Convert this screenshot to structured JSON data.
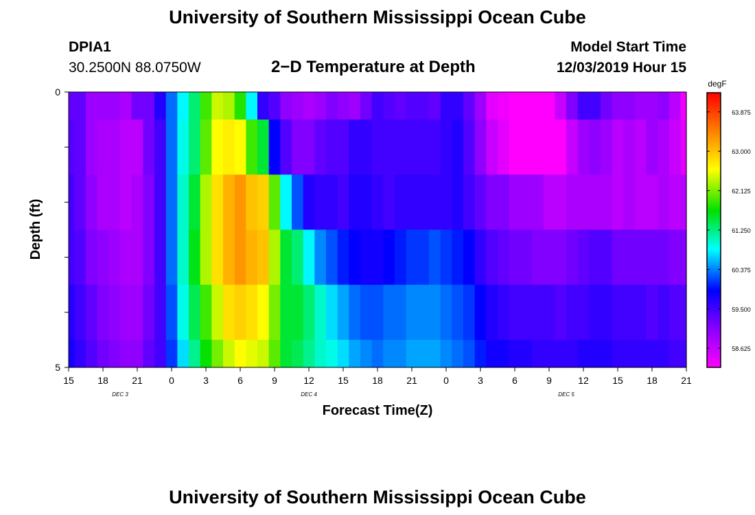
{
  "header": {
    "title": "University of Southern Mississippi Ocean Cube",
    "station_id": "DPIA1",
    "station_coords": "30.2500N 88.0750W",
    "model_label": "Model Start Time",
    "model_time": "12/03/2019 Hour 15"
  },
  "footer": {
    "title": "University of Southern Mississippi Ocean Cube"
  },
  "chart_data": {
    "type": "heatmap",
    "title": "2−D Temperature at Depth",
    "xlabel": "Forecast Time(Z)",
    "ylabel": "Depth (ft)",
    "x_ticks": [
      "15",
      "18",
      "21",
      "0",
      "3",
      "6",
      "9",
      "12",
      "15",
      "18",
      "21",
      "0",
      "3",
      "6",
      "9",
      "12",
      "15",
      "18",
      "21"
    ],
    "x_tick_hours": [
      0,
      3,
      6,
      9,
      12,
      15,
      18,
      21,
      24,
      27,
      30,
      33,
      36,
      39,
      42,
      45,
      48,
      51,
      54
    ],
    "day_labels": [
      {
        "label": "DEC 3",
        "hour": 4.5
      },
      {
        "label": "DEC 4",
        "hour": 21
      },
      {
        "label": "DEC 5",
        "hour": 43.5
      }
    ],
    "y_ticks": [
      "0",
      "5"
    ],
    "y_range": [
      0,
      5
    ],
    "depth_rows": [
      0,
      1,
      2,
      3,
      4,
      5
    ],
    "hours": [
      0,
      1,
      2,
      3,
      4,
      5,
      6,
      7,
      8,
      9,
      10,
      11,
      12,
      13,
      14,
      15,
      16,
      17,
      18,
      19,
      20,
      21,
      22,
      23,
      24,
      25,
      26,
      27,
      28,
      29,
      30,
      31,
      32,
      33,
      34,
      35,
      36,
      37,
      38,
      39,
      40,
      41,
      42,
      43,
      44,
      45,
      46,
      47,
      48,
      49,
      50,
      51,
      52,
      53,
      54
    ],
    "temps_degF": [
      [
        59.3,
        59.3,
        58.9,
        58.9,
        58.9,
        58.8,
        59.2,
        59.2,
        59.7,
        60.3,
        60.8,
        61.3,
        61.9,
        62.4,
        62.3,
        61.8,
        60.8,
        59.6,
        59.4,
        59.0,
        58.9,
        58.8,
        58.9,
        59.1,
        59.0,
        58.9,
        59.2,
        59.5,
        59.4,
        59.3,
        59.4,
        59.4,
        59.3,
        59.6,
        59.6,
        59.3,
        58.9,
        58.4,
        58.3,
        58.0,
        58.2,
        58.0,
        58.2,
        58.6,
        59.1,
        59.5,
        59.5,
        59.2,
        59.0,
        59.0,
        58.9,
        58.9,
        59.0,
        58.7,
        58.3
      ],
      [
        59.4,
        59.3,
        58.9,
        58.8,
        58.8,
        58.7,
        58.7,
        59.2,
        59.5,
        60.3,
        60.9,
        61.3,
        62.0,
        62.6,
        62.7,
        62.6,
        61.9,
        61.5,
        59.9,
        59.4,
        59.1,
        59.1,
        59.3,
        59.4,
        59.4,
        59.6,
        59.6,
        59.5,
        59.5,
        59.5,
        59.5,
        59.5,
        59.5,
        59.6,
        59.7,
        59.4,
        59.0,
        58.6,
        58.4,
        58.2,
        58.1,
        58.1,
        58.1,
        58.2,
        58.6,
        58.9,
        59.0,
        58.9,
        58.7,
        58.8,
        58.7,
        58.9,
        58.8,
        58.6,
        58.4
      ],
      [
        59.5,
        59.3,
        59.0,
        58.8,
        58.8,
        58.7,
        58.8,
        59.1,
        59.5,
        60.3,
        61.0,
        61.5,
        62.3,
        62.8,
        63.1,
        63.3,
        63.0,
        62.9,
        62.0,
        60.8,
        60.2,
        59.7,
        59.6,
        59.6,
        59.5,
        59.7,
        59.7,
        59.6,
        59.5,
        59.6,
        59.6,
        59.6,
        59.6,
        59.6,
        59.7,
        59.5,
        59.3,
        59.1,
        59.1,
        58.9,
        58.9,
        58.9,
        58.7,
        58.7,
        58.8,
        58.8,
        58.8,
        58.8,
        58.7,
        58.8,
        58.7,
        58.7,
        58.8,
        58.7,
        58.7
      ],
      [
        59.5,
        59.4,
        59.1,
        59.0,
        58.9,
        58.8,
        58.8,
        59.1,
        59.5,
        60.3,
        61.0,
        61.6,
        62.3,
        62.8,
        63.1,
        63.3,
        63.1,
        63.0,
        62.3,
        61.5,
        61.3,
        60.8,
        60.4,
        60.2,
        60.0,
        59.9,
        59.8,
        59.8,
        59.9,
        60.0,
        60.1,
        60.1,
        60.2,
        60.1,
        60.0,
        59.9,
        59.6,
        59.4,
        59.3,
        59.2,
        59.2,
        59.1,
        59.1,
        59.1,
        59.2,
        59.3,
        59.4,
        59.4,
        59.2,
        59.2,
        59.2,
        59.2,
        59.2,
        59.1,
        59.1
      ],
      [
        59.7,
        59.5,
        59.3,
        59.1,
        59.0,
        58.9,
        58.9,
        59.2,
        59.5,
        60.2,
        60.9,
        61.4,
        61.9,
        62.4,
        62.8,
        62.9,
        62.8,
        62.6,
        62.1,
        61.5,
        61.5,
        61.3,
        61.0,
        60.7,
        60.5,
        60.3,
        60.2,
        60.2,
        60.3,
        60.3,
        60.4,
        60.4,
        60.4,
        60.3,
        60.2,
        60.1,
        59.9,
        59.7,
        59.6,
        59.5,
        59.5,
        59.5,
        59.5,
        59.4,
        59.5,
        59.5,
        59.6,
        59.6,
        59.5,
        59.5,
        59.5,
        59.4,
        59.5,
        59.4,
        59.4
      ],
      [
        59.8,
        59.6,
        59.4,
        59.2,
        59.1,
        59.0,
        59.0,
        59.3,
        59.5,
        60.1,
        60.7,
        61.2,
        61.7,
        62.1,
        62.4,
        62.6,
        62.5,
        62.4,
        62.0,
        61.5,
        61.4,
        61.2,
        61.0,
        60.9,
        60.7,
        60.5,
        60.4,
        60.3,
        60.4,
        60.4,
        60.5,
        60.5,
        60.5,
        60.4,
        60.3,
        60.2,
        60.0,
        59.8,
        59.8,
        59.7,
        59.7,
        59.6,
        59.6,
        59.6,
        59.6,
        59.7,
        59.7,
        59.7,
        59.6,
        59.6,
        59.6,
        59.6,
        59.6,
        59.5,
        59.5
      ]
    ],
    "colorbar": {
      "unit": "degF",
      "min": 58.2,
      "max": 64.3,
      "ticks": [
        "58.625",
        "59.500",
        "60.375",
        "61.250",
        "62.125",
        "63.000",
        "63.875"
      ],
      "tick_values": [
        58.625,
        59.5,
        60.375,
        61.25,
        62.125,
        63.0,
        63.875
      ]
    }
  }
}
